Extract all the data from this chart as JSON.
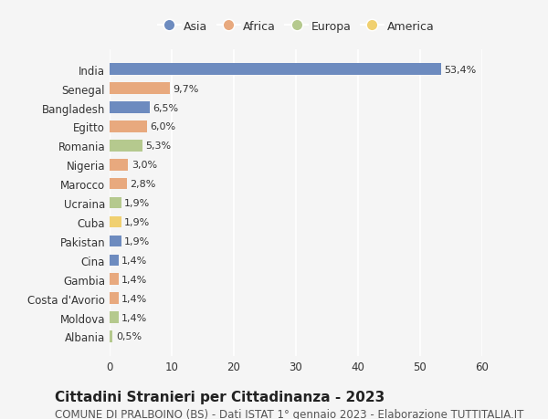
{
  "countries": [
    "India",
    "Senegal",
    "Bangladesh",
    "Egitto",
    "Romania",
    "Nigeria",
    "Marocco",
    "Ucraina",
    "Cuba",
    "Pakistan",
    "Cina",
    "Gambia",
    "Costa d'Avorio",
    "Moldova",
    "Albania"
  ],
  "values": [
    53.4,
    9.7,
    6.5,
    6.0,
    5.3,
    3.0,
    2.8,
    1.9,
    1.9,
    1.9,
    1.4,
    1.4,
    1.4,
    1.4,
    0.5
  ],
  "labels": [
    "53,4%",
    "9,7%",
    "6,5%",
    "6,0%",
    "5,3%",
    "3,0%",
    "2,8%",
    "1,9%",
    "1,9%",
    "1,9%",
    "1,4%",
    "1,4%",
    "1,4%",
    "1,4%",
    "0,5%"
  ],
  "continents": [
    "Asia",
    "Africa",
    "Asia",
    "Africa",
    "Europa",
    "Africa",
    "Africa",
    "Europa",
    "America",
    "Asia",
    "Asia",
    "Africa",
    "Africa",
    "Europa",
    "Europa"
  ],
  "continent_colors": {
    "Asia": "#6d8bbf",
    "Africa": "#e8a97e",
    "Europa": "#b5c98e",
    "America": "#f0d070"
  },
  "legend_order": [
    "Asia",
    "Africa",
    "Europa",
    "America"
  ],
  "title": "Cittadini Stranieri per Cittadinanza - 2023",
  "subtitle": "COMUNE DI PRALBOINO (BS) - Dati ISTAT 1° gennaio 2023 - Elaborazione TUTTITALIA.IT",
  "xlim": [
    0,
    60
  ],
  "xticks": [
    0,
    10,
    20,
    30,
    40,
    50,
    60
  ],
  "bg_color": "#f5f5f5",
  "grid_color": "#ffffff",
  "title_fontsize": 11,
  "subtitle_fontsize": 8.5,
  "bar_label_fontsize": 8,
  "tick_fontsize": 8.5,
  "legend_fontsize": 9
}
